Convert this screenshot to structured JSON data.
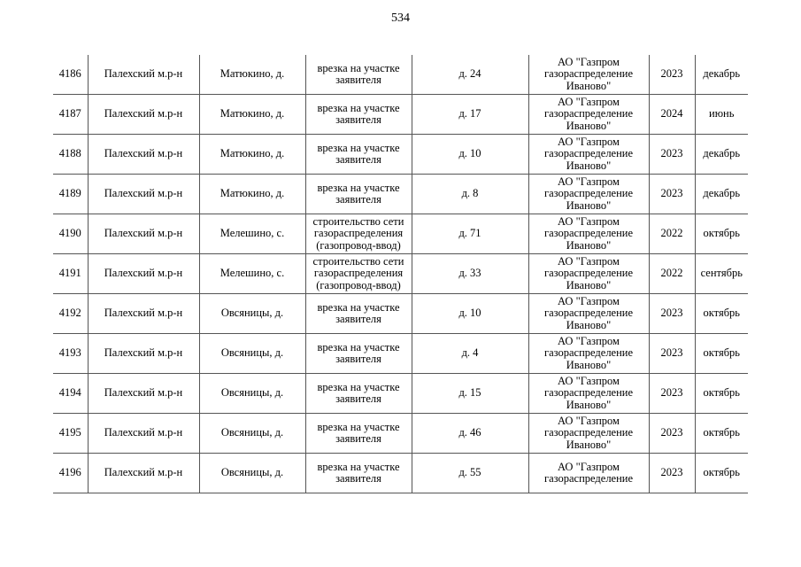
{
  "page_number": "534",
  "table": {
    "rows": [
      [
        "4186",
        "Палехский м.р-н",
        "Матюкино, д.",
        "врезка на участке заявителя",
        "д. 24",
        "АО \"Газпром газораспределение Иваново\"",
        "2023",
        "декабрь"
      ],
      [
        "4187",
        "Палехский м.р-н",
        "Матюкино, д.",
        "врезка на участке заявителя",
        "д. 17",
        "АО \"Газпром газораспределение Иваново\"",
        "2024",
        "июнь"
      ],
      [
        "4188",
        "Палехский м.р-н",
        "Матюкино, д.",
        "врезка на участке заявителя",
        "д. 10",
        "АО \"Газпром газораспределение Иваново\"",
        "2023",
        "декабрь"
      ],
      [
        "4189",
        "Палехский м.р-н",
        "Матюкино, д.",
        "врезка на участке заявителя",
        "д. 8",
        "АО \"Газпром газораспределение Иваново\"",
        "2023",
        "декабрь"
      ],
      [
        "4190",
        "Палехский м.р-н",
        "Мелешино, с.",
        "строительство сети газораспределения (газопровод-ввод)",
        "д. 71",
        "АО \"Газпром газораспределение Иваново\"",
        "2022",
        "октябрь"
      ],
      [
        "4191",
        "Палехский м.р-н",
        "Мелешино, с.",
        "строительство сети газораспределения (газопровод-ввод)",
        "д. 33",
        "АО \"Газпром газораспределение Иваново\"",
        "2022",
        "сентябрь"
      ],
      [
        "4192",
        "Палехский м.р-н",
        "Овсяницы, д.",
        "врезка на участке заявителя",
        "д. 10",
        "АО \"Газпром газораспределение Иваново\"",
        "2023",
        "октябрь"
      ],
      [
        "4193",
        "Палехский м.р-н",
        "Овсяницы, д.",
        "врезка на участке заявителя",
        "д. 4",
        "АО \"Газпром газораспределение Иваново\"",
        "2023",
        "октябрь"
      ],
      [
        "4194",
        "Палехский м.р-н",
        "Овсяницы, д.",
        "врезка на участке заявителя",
        "д. 15",
        "АО \"Газпром газораспределение Иваново\"",
        "2023",
        "октябрь"
      ],
      [
        "4195",
        "Палехский м.р-н",
        "Овсяницы, д.",
        "врезка на участке заявителя",
        "д. 46",
        "АО \"Газпром газораспределение Иваново\"",
        "2023",
        "октябрь"
      ],
      [
        "4196",
        "Палехский м.р-н",
        "Овсяницы, д.",
        "врезка на участке заявителя",
        "д. 55",
        "АО \"Газпром газораспределение",
        "2023",
        "октябрь"
      ]
    ]
  }
}
